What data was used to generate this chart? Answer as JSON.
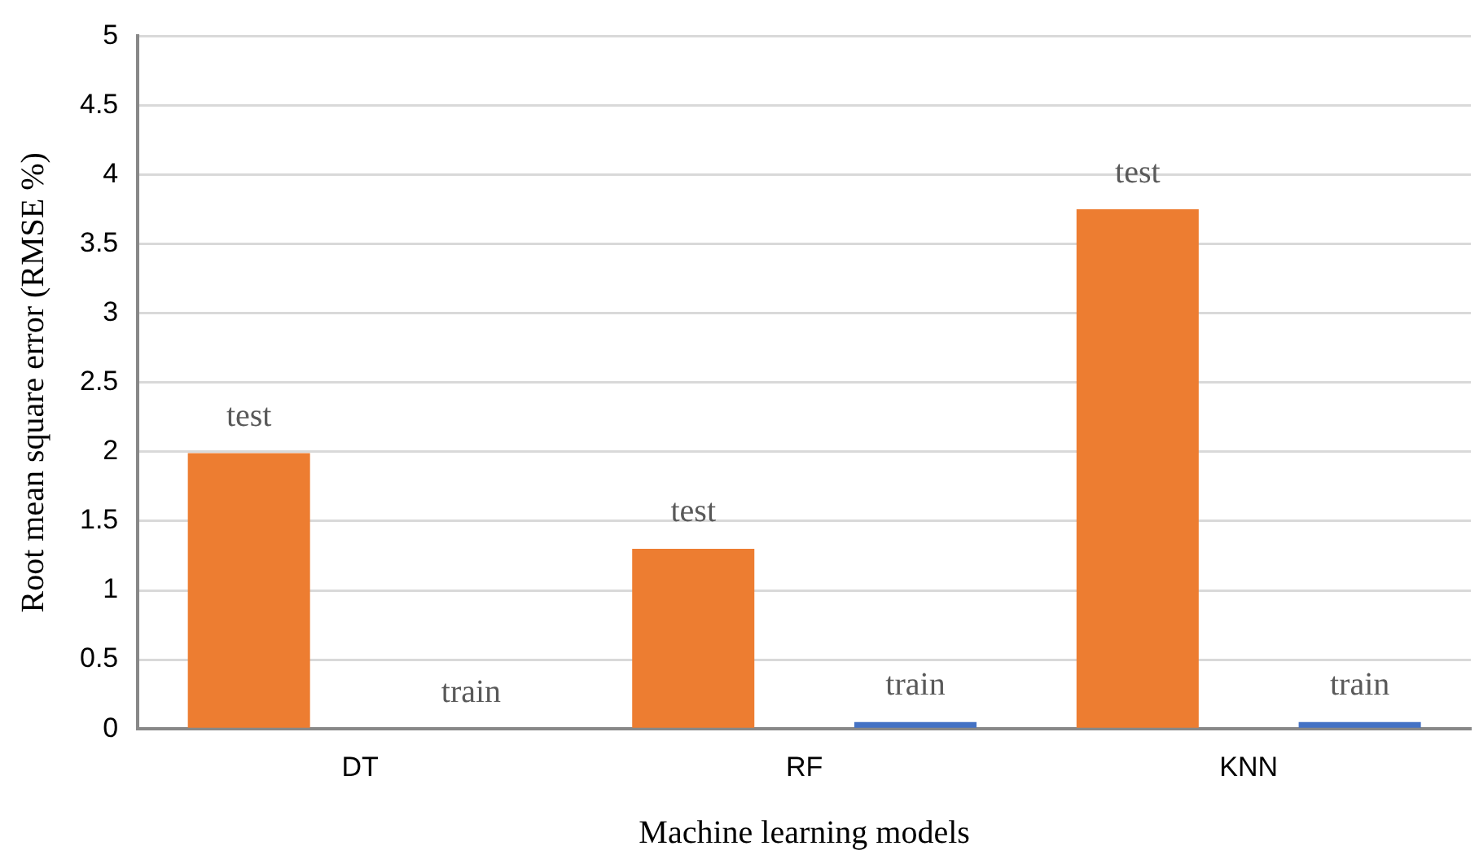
{
  "chart_data": {
    "type": "bar",
    "xlabel": "Machine learning models",
    "ylabel": "Root mean square error (RMSE %)",
    "categories": [
      "DT",
      "RF",
      "KNN"
    ],
    "series": [
      {
        "name": "test",
        "color": "#ed7d31",
        "values": [
          1.99,
          1.3,
          3.75
        ]
      },
      {
        "name": "train",
        "color": "#4472c4",
        "values": [
          0,
          0.05,
          0.05
        ]
      }
    ],
    "ylim": [
      0,
      5
    ],
    "yticks": [
      0,
      0.5,
      1,
      1.5,
      2,
      2.5,
      3,
      3.5,
      4,
      4.5,
      5
    ],
    "grid": "y",
    "legend": false
  }
}
